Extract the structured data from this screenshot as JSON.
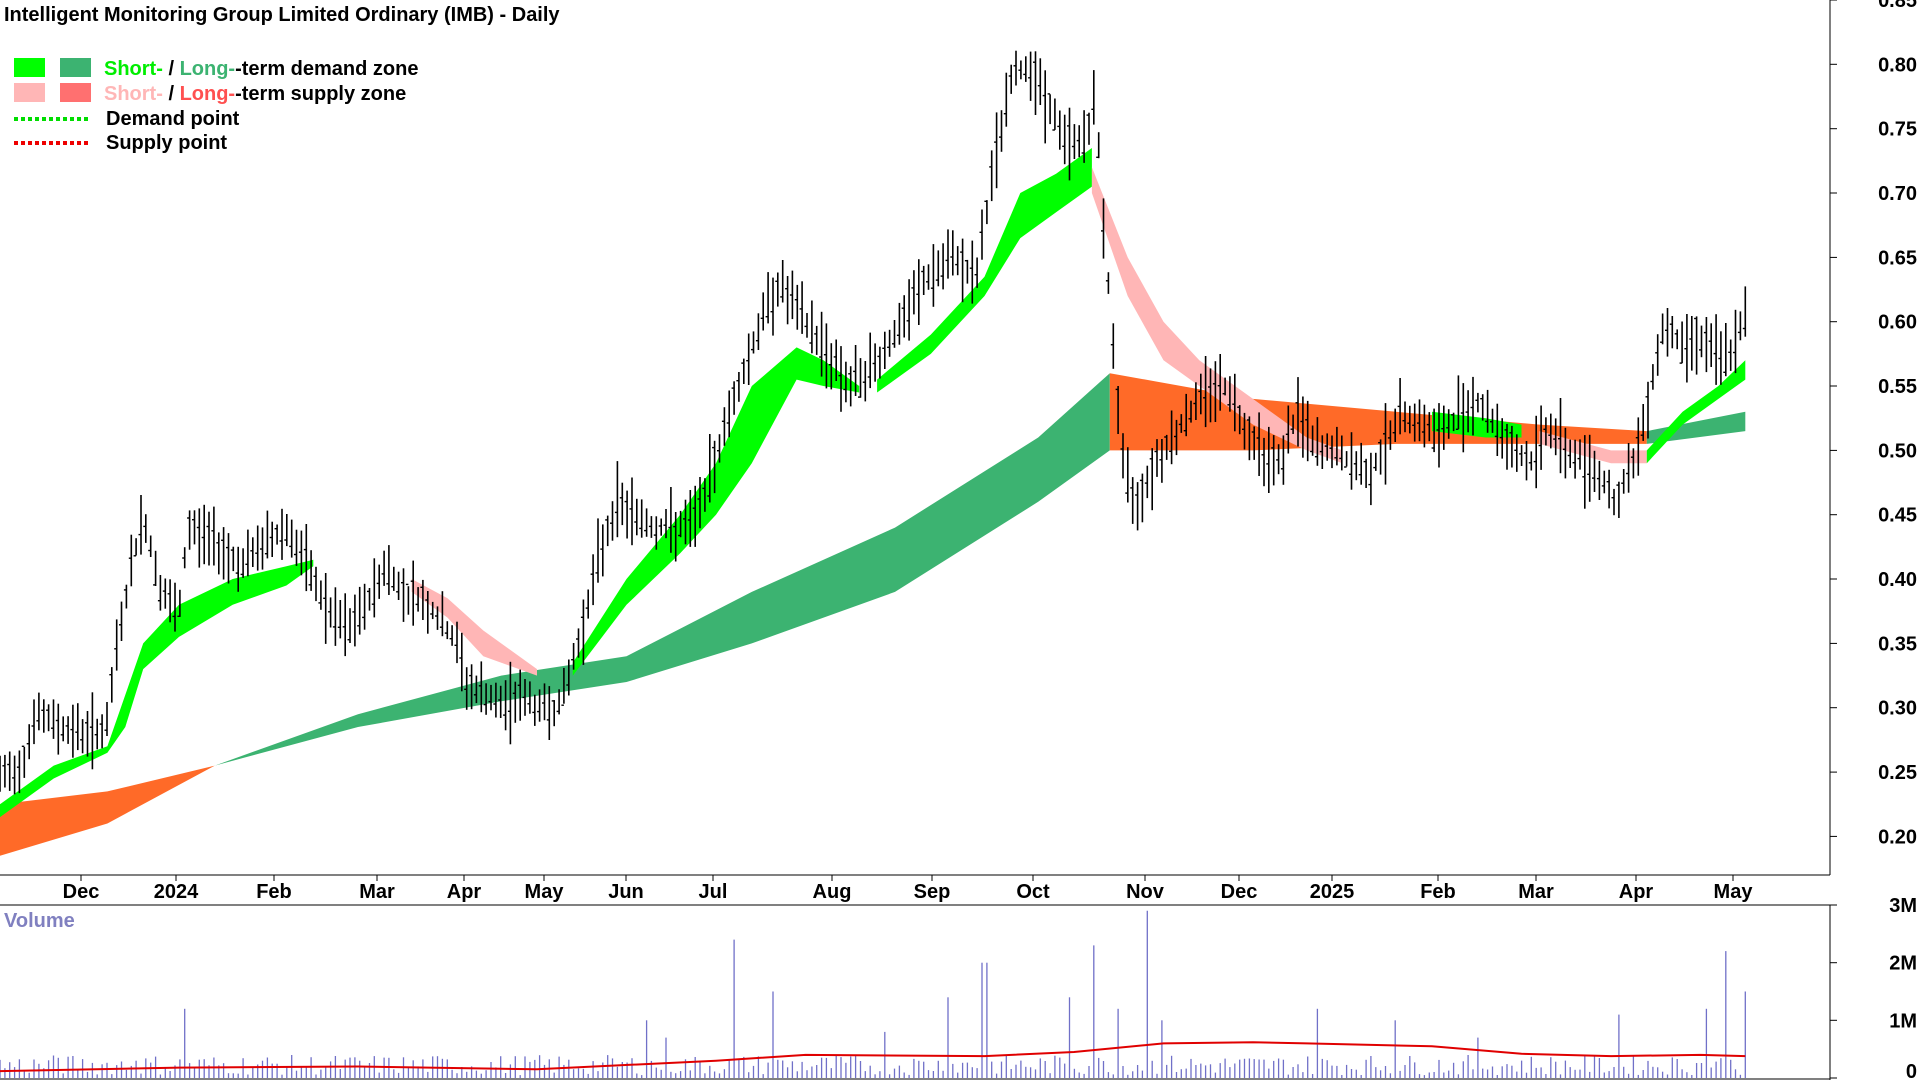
{
  "chart_data": {
    "type": "line",
    "title": "Intelligent Monitoring Group Limited Ordinary (IMB) - Daily",
    "legend": {
      "placement": "top-left",
      "entries": [
        {
          "short": "Short-",
          "sep": " / ",
          "long": "Long-",
          "rest": "-term demand zone",
          "short_color": "#00ff00",
          "long_color": "#3cb371"
        },
        {
          "short": "Short-",
          "sep": " / ",
          "long": "Long-",
          "rest": "-term supply zone",
          "short_color": "#ffb6b6",
          "long_color": "#ff7070"
        },
        {
          "label": "Demand point",
          "color": "#00dd00"
        },
        {
          "label": "Supply point",
          "color": "#ee0000"
        }
      ]
    },
    "x_tick_labels": [
      "Dec",
      "2024",
      "Feb",
      "Mar",
      "Apr",
      "May",
      "Jun",
      "Jul",
      "Aug",
      "Sep",
      "Oct",
      "Nov",
      "Dec",
      "2025",
      "Feb",
      "Mar",
      "Apr",
      "May"
    ],
    "price_axis": {
      "ylim": [
        0.17,
        0.85
      ],
      "tick_labels": [
        "0.85",
        "0.80",
        "0.75",
        "0.70",
        "0.65",
        "0.60",
        "0.55",
        "0.50",
        "0.45",
        "0.40",
        "0.35",
        "0.30",
        "0.25",
        "0.20"
      ]
    },
    "volume_panel": {
      "title": "Volume",
      "ylim": [
        0,
        3000000
      ],
      "tick_labels": [
        "3M",
        "2M",
        "1M",
        "0"
      ],
      "spikes": [
        [
          0.032,
          0.35
        ],
        [
          0.075,
          0.3
        ],
        [
          0.104,
          1.2
        ],
        [
          0.36,
          1.0
        ],
        [
          0.372,
          0.7
        ],
        [
          0.411,
          2.4
        ],
        [
          0.431,
          1.5
        ],
        [
          0.495,
          0.8
        ],
        [
          0.53,
          1.4
        ],
        [
          0.55,
          2.0
        ],
        [
          0.598,
          1.4
        ],
        [
          0.61,
          2.3
        ],
        [
          0.625,
          1.2
        ],
        [
          0.64,
          2.9
        ],
        [
          0.65,
          1.0
        ],
        [
          0.735,
          1.2
        ],
        [
          0.78,
          1.0
        ],
        [
          0.825,
          0.7
        ],
        [
          0.905,
          1.1
        ],
        [
          0.952,
          1.2
        ],
        [
          0.963,
          2.2
        ],
        [
          0.975,
          1.5
        ]
      ],
      "volume_ma": [
        [
          0,
          0.12
        ],
        [
          0.1,
          0.18
        ],
        [
          0.2,
          0.2
        ],
        [
          0.3,
          0.15
        ],
        [
          0.4,
          0.3
        ],
        [
          0.45,
          0.4
        ],
        [
          0.55,
          0.38
        ],
        [
          0.6,
          0.45
        ],
        [
          0.65,
          0.6
        ],
        [
          0.7,
          0.62
        ],
        [
          0.73,
          0.6
        ],
        [
          0.8,
          0.55
        ],
        [
          0.85,
          0.42
        ],
        [
          0.9,
          0.38
        ],
        [
          0.95,
          0.4
        ],
        [
          0.975,
          0.38
        ]
      ]
    },
    "price": [
      [
        0,
        0.245
      ],
      [
        0.012,
        0.255
      ],
      [
        0.02,
        0.295
      ],
      [
        0.035,
        0.285
      ],
      [
        0.05,
        0.28
      ],
      [
        0.06,
        0.285
      ],
      [
        0.065,
        0.345
      ],
      [
        0.072,
        0.4
      ],
      [
        0.08,
        0.45
      ],
      [
        0.085,
        0.42
      ],
      [
        0.09,
        0.39
      ],
      [
        0.1,
        0.37
      ],
      [
        0.105,
        0.44
      ],
      [
        0.12,
        0.43
      ],
      [
        0.135,
        0.41
      ],
      [
        0.15,
        0.43
      ],
      [
        0.16,
        0.44
      ],
      [
        0.175,
        0.4
      ],
      [
        0.185,
        0.37
      ],
      [
        0.195,
        0.36
      ],
      [
        0.205,
        0.38
      ],
      [
        0.215,
        0.41
      ],
      [
        0.225,
        0.39
      ],
      [
        0.235,
        0.385
      ],
      [
        0.245,
        0.37
      ],
      [
        0.255,
        0.35
      ],
      [
        0.26,
        0.32
      ],
      [
        0.27,
        0.31
      ],
      [
        0.28,
        0.3
      ],
      [
        0.29,
        0.31
      ],
      [
        0.3,
        0.3
      ],
      [
        0.31,
        0.3
      ],
      [
        0.315,
        0.31
      ],
      [
        0.325,
        0.36
      ],
      [
        0.335,
        0.42
      ],
      [
        0.345,
        0.46
      ],
      [
        0.355,
        0.45
      ],
      [
        0.365,
        0.44
      ],
      [
        0.375,
        0.44
      ],
      [
        0.385,
        0.44
      ],
      [
        0.395,
        0.47
      ],
      [
        0.405,
        0.52
      ],
      [
        0.415,
        0.56
      ],
      [
        0.425,
        0.6
      ],
      [
        0.435,
        0.63
      ],
      [
        0.445,
        0.61
      ],
      [
        0.455,
        0.59
      ],
      [
        0.465,
        0.57
      ],
      [
        0.475,
        0.55
      ],
      [
        0.485,
        0.56
      ],
      [
        0.495,
        0.58
      ],
      [
        0.505,
        0.6
      ],
      [
        0.515,
        0.63
      ],
      [
        0.525,
        0.64
      ],
      [
        0.535,
        0.65
      ],
      [
        0.545,
        0.63
      ],
      [
        0.555,
        0.72
      ],
      [
        0.565,
        0.79
      ],
      [
        0.575,
        0.8
      ],
      [
        0.585,
        0.77
      ],
      [
        0.595,
        0.74
      ],
      [
        0.605,
        0.74
      ],
      [
        0.612,
        0.77
      ],
      [
        0.618,
        0.65
      ],
      [
        0.622,
        0.58
      ],
      [
        0.628,
        0.48
      ],
      [
        0.635,
        0.46
      ],
      [
        0.645,
        0.49
      ],
      [
        0.655,
        0.51
      ],
      [
        0.665,
        0.53
      ],
      [
        0.675,
        0.55
      ],
      [
        0.685,
        0.55
      ],
      [
        0.695,
        0.52
      ],
      [
        0.705,
        0.5
      ],
      [
        0.715,
        0.49
      ],
      [
        0.725,
        0.53
      ],
      [
        0.735,
        0.5
      ],
      [
        0.745,
        0.5
      ],
      [
        0.755,
        0.49
      ],
      [
        0.765,
        0.48
      ],
      [
        0.775,
        0.51
      ],
      [
        0.785,
        0.53
      ],
      [
        0.795,
        0.52
      ],
      [
        0.805,
        0.51
      ],
      [
        0.815,
        0.53
      ],
      [
        0.825,
        0.54
      ],
      [
        0.835,
        0.52
      ],
      [
        0.845,
        0.5
      ],
      [
        0.855,
        0.49
      ],
      [
        0.865,
        0.52
      ],
      [
        0.875,
        0.5
      ],
      [
        0.885,
        0.49
      ],
      [
        0.895,
        0.48
      ],
      [
        0.902,
        0.46
      ],
      [
        0.91,
        0.48
      ],
      [
        0.915,
        0.5
      ],
      [
        0.922,
        0.55
      ],
      [
        0.93,
        0.6
      ],
      [
        0.94,
        0.58
      ],
      [
        0.948,
        0.59
      ],
      [
        0.955,
        0.58
      ],
      [
        0.962,
        0.57
      ],
      [
        0.968,
        0.58
      ],
      [
        0.975,
        0.6
      ]
    ],
    "zones": [
      {
        "kind": "long-demand",
        "color": "#3cb371",
        "upper": [
          [
            0.12,
            0.255
          ],
          [
            0.2,
            0.295
          ],
          [
            0.28,
            0.325
          ],
          [
            0.35,
            0.34
          ],
          [
            0.42,
            0.39
          ],
          [
            0.5,
            0.44
          ],
          [
            0.58,
            0.51
          ],
          [
            0.62,
            0.56
          ]
        ],
        "lower": [
          [
            0.12,
            0.255
          ],
          [
            0.2,
            0.285
          ],
          [
            0.28,
            0.305
          ],
          [
            0.35,
            0.32
          ],
          [
            0.42,
            0.35
          ],
          [
            0.5,
            0.39
          ],
          [
            0.58,
            0.46
          ],
          [
            0.62,
            0.5
          ]
        ]
      },
      {
        "kind": "long-supply",
        "color": "#ff6a28",
        "upper": [
          [
            0,
            0.225
          ],
          [
            0.06,
            0.235
          ],
          [
            0.12,
            0.255
          ]
        ],
        "lower": [
          [
            0,
            0.185
          ],
          [
            0.06,
            0.21
          ],
          [
            0.12,
            0.255
          ]
        ]
      },
      {
        "kind": "long-supply",
        "color": "#ff6a28",
        "upper": [
          [
            0.62,
            0.56
          ],
          [
            0.7,
            0.54
          ],
          [
            0.78,
            0.53
          ],
          [
            0.86,
            0.52
          ],
          [
            0.92,
            0.515
          ]
        ],
        "lower": [
          [
            0.62,
            0.5
          ],
          [
            0.7,
            0.5
          ],
          [
            0.78,
            0.505
          ],
          [
            0.86,
            0.505
          ],
          [
            0.92,
            0.505
          ]
        ]
      },
      {
        "kind": "long-demand",
        "color": "#3cb371",
        "upper": [
          [
            0.92,
            0.515
          ],
          [
            0.975,
            0.53
          ]
        ],
        "lower": [
          [
            0.92,
            0.505
          ],
          [
            0.975,
            0.515
          ]
        ]
      },
      {
        "kind": "short-demand",
        "color": "#00ff00",
        "upper": [
          [
            0,
            0.225
          ],
          [
            0.03,
            0.255
          ],
          [
            0.06,
            0.27
          ],
          [
            0.07,
            0.31
          ],
          [
            0.08,
            0.35
          ],
          [
            0.1,
            0.38
          ],
          [
            0.13,
            0.4
          ],
          [
            0.16,
            0.41
          ],
          [
            0.175,
            0.415
          ]
        ],
        "lower": [
          [
            0,
            0.215
          ],
          [
            0.03,
            0.245
          ],
          [
            0.06,
            0.265
          ],
          [
            0.07,
            0.285
          ],
          [
            0.08,
            0.33
          ],
          [
            0.1,
            0.355
          ],
          [
            0.13,
            0.38
          ],
          [
            0.16,
            0.395
          ],
          [
            0.175,
            0.41
          ]
        ]
      },
      {
        "kind": "short-supply",
        "color": "#ffb6b6",
        "upper": [
          [
            0.23,
            0.4
          ],
          [
            0.25,
            0.385
          ],
          [
            0.27,
            0.36
          ],
          [
            0.3,
            0.33
          ]
        ],
        "lower": [
          [
            0.23,
            0.39
          ],
          [
            0.25,
            0.37
          ],
          [
            0.27,
            0.34
          ],
          [
            0.3,
            0.325
          ]
        ]
      },
      {
        "kind": "short-demand",
        "color": "#00ff00",
        "upper": [
          [
            0.32,
            0.335
          ],
          [
            0.35,
            0.4
          ],
          [
            0.38,
            0.45
          ],
          [
            0.4,
            0.49
          ],
          [
            0.42,
            0.55
          ],
          [
            0.445,
            0.58
          ],
          [
            0.46,
            0.57
          ],
          [
            0.48,
            0.55
          ]
        ],
        "lower": [
          [
            0.32,
            0.325
          ],
          [
            0.35,
            0.38
          ],
          [
            0.38,
            0.42
          ],
          [
            0.4,
            0.45
          ],
          [
            0.42,
            0.49
          ],
          [
            0.445,
            0.555
          ],
          [
            0.46,
            0.55
          ],
          [
            0.48,
            0.545
          ]
        ]
      },
      {
        "kind": "short-demand",
        "color": "#00ff00",
        "upper": [
          [
            0.49,
            0.555
          ],
          [
            0.52,
            0.59
          ],
          [
            0.55,
            0.635
          ],
          [
            0.57,
            0.7
          ],
          [
            0.59,
            0.715
          ],
          [
            0.61,
            0.735
          ]
        ],
        "lower": [
          [
            0.49,
            0.545
          ],
          [
            0.52,
            0.575
          ],
          [
            0.55,
            0.62
          ],
          [
            0.57,
            0.665
          ],
          [
            0.59,
            0.685
          ],
          [
            0.61,
            0.705
          ]
        ]
      },
      {
        "kind": "short-supply",
        "color": "#ffb6b6",
        "upper": [
          [
            0.61,
            0.72
          ],
          [
            0.63,
            0.65
          ],
          [
            0.65,
            0.6
          ],
          [
            0.67,
            0.57
          ],
          [
            0.7,
            0.54
          ],
          [
            0.73,
            0.51
          ],
          [
            0.75,
            0.5
          ]
        ],
        "lower": [
          [
            0.61,
            0.7
          ],
          [
            0.63,
            0.62
          ],
          [
            0.65,
            0.57
          ],
          [
            0.67,
            0.55
          ],
          [
            0.7,
            0.52
          ],
          [
            0.73,
            0.5
          ],
          [
            0.75,
            0.49
          ]
        ]
      },
      {
        "kind": "short-demand",
        "color": "#00ff00",
        "upper": [
          [
            0.8,
            0.53
          ],
          [
            0.83,
            0.525
          ],
          [
            0.85,
            0.52
          ]
        ],
        "lower": [
          [
            0.8,
            0.515
          ],
          [
            0.83,
            0.51
          ],
          [
            0.85,
            0.51
          ]
        ]
      },
      {
        "kind": "short-supply",
        "color": "#ffb6b6",
        "upper": [
          [
            0.86,
            0.515
          ],
          [
            0.9,
            0.5
          ],
          [
            0.92,
            0.5
          ]
        ],
        "lower": [
          [
            0.86,
            0.505
          ],
          [
            0.9,
            0.49
          ],
          [
            0.92,
            0.49
          ]
        ]
      },
      {
        "kind": "short-demand",
        "color": "#00ff00",
        "upper": [
          [
            0.92,
            0.5
          ],
          [
            0.94,
            0.53
          ],
          [
            0.96,
            0.55
          ],
          [
            0.975,
            0.57
          ]
        ],
        "lower": [
          [
            0.92,
            0.49
          ],
          [
            0.94,
            0.52
          ],
          [
            0.96,
            0.54
          ],
          [
            0.975,
            0.555
          ]
        ]
      }
    ]
  }
}
